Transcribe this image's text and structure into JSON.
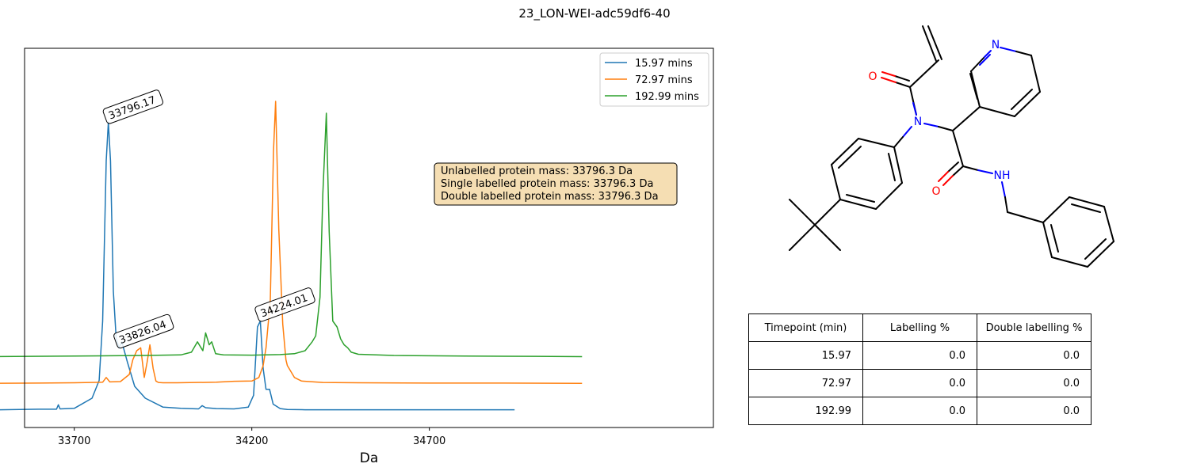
{
  "suptitle": "23_LON-WEI-adc59df6-40",
  "chart_data": {
    "type": "line",
    "xlabel": "Da",
    "ylabel": "",
    "xlim": [
      33560,
      35500
    ],
    "xticks": [
      33700,
      34200,
      34700
    ],
    "grid": false,
    "legend": {
      "location": "upper right"
    },
    "colors": [
      "#1f77b4",
      "#ff7f0e",
      "#2ca02c"
    ],
    "series": [
      {
        "name": "15.97 mins",
        "x": [
          33430,
          33600,
          33650,
          33655,
          33660,
          33700,
          33750,
          33770,
          33780,
          33790,
          33796,
          33802,
          33810,
          33818,
          33826,
          33834,
          33850,
          33870,
          33900,
          33950,
          34000,
          34050,
          34060,
          34070,
          34100,
          34150,
          34190,
          34205,
          34216,
          34224,
          34232,
          34240,
          34250,
          34260,
          34280,
          34300,
          34350,
          34500,
          34800,
          34940
        ],
        "y": [
          0,
          0.003,
          0.003,
          0.018,
          0.004,
          0.006,
          0.04,
          0.1,
          0.3,
          0.84,
          0.97,
          0.84,
          0.4,
          0.24,
          0.21,
          0.23,
          0.16,
          0.08,
          0.04,
          0.01,
          0.006,
          0.004,
          0.015,
          0.008,
          0.005,
          0.004,
          0.01,
          0.05,
          0.28,
          0.3,
          0.14,
          0.07,
          0.07,
          0.02,
          0.005,
          0.002,
          0.001,
          0.001,
          0.001,
          0.001
        ]
      },
      {
        "name": "72.97 mins",
        "x": [
          33380,
          33600,
          33700,
          33780,
          33790,
          33800,
          33830,
          33855,
          33865,
          33876,
          33887,
          33897,
          33905,
          33913,
          33922,
          33930,
          33937,
          33950,
          33990,
          34100,
          34150,
          34200,
          34220,
          34232,
          34240,
          34252,
          34261,
          34267,
          34276,
          34287,
          34296,
          34300,
          34320,
          34340,
          34400,
          34500,
          34700,
          34900,
          35130
        ],
        "y": [
          0,
          0.001,
          0.002,
          0.004,
          0.02,
          0.005,
          0.006,
          0.03,
          0.08,
          0.11,
          0.12,
          0.02,
          0.07,
          0.13,
          0.05,
          0.008,
          0.003,
          0.002,
          0.002,
          0.004,
          0.007,
          0.008,
          0.02,
          0.06,
          0.12,
          0.28,
          0.78,
          0.95,
          0.52,
          0.2,
          0.08,
          0.06,
          0.02,
          0.008,
          0.003,
          0.002,
          0.001,
          0.001,
          0
        ]
      },
      {
        "name": "192.99 mins",
        "x": [
          33430,
          33700,
          33800,
          33900,
          34000,
          34030,
          34047,
          34062,
          34070,
          34080,
          34087,
          34098,
          34120,
          34200,
          34280,
          34320,
          34350,
          34370,
          34380,
          34392,
          34400,
          34410,
          34418,
          34428,
          34440,
          34450,
          34460,
          34470,
          34480,
          34500,
          34600,
          34800,
          35000,
          35130
        ],
        "y": [
          0,
          0.002,
          0.003,
          0.004,
          0.006,
          0.015,
          0.05,
          0.02,
          0.08,
          0.04,
          0.05,
          0.01,
          0.006,
          0.005,
          0.007,
          0.01,
          0.02,
          0.05,
          0.07,
          0.2,
          0.55,
          0.82,
          0.42,
          0.12,
          0.1,
          0.06,
          0.04,
          0.03,
          0.015,
          0.008,
          0.004,
          0.002,
          0.001,
          0
        ]
      }
    ],
    "offset_between_series": 0.09,
    "annotations": [
      {
        "text": "33796.17",
        "x": 33796.17,
        "series": 0
      },
      {
        "text": "33826.04",
        "x": 33826.04,
        "series": 0
      },
      {
        "text": "34224.01",
        "x": 34224.01,
        "series": 0
      }
    ],
    "info_box": [
      "Unlabelled protein mass: 33796.3 Da",
      "Single labelled protein mass: 33796.3 Da",
      "Double labelled protein mass: 33796.3 Da"
    ]
  },
  "molecule": {
    "atom_labels": [
      {
        "text": "O",
        "color": "#ff0000"
      },
      {
        "text": "N",
        "color": "#0000ff"
      },
      {
        "text": "N",
        "color": "#0000ff"
      },
      {
        "text": "O",
        "color": "#ff0000"
      },
      {
        "text": "NH",
        "color": "#0000ff"
      }
    ]
  },
  "table": {
    "headers": [
      "Timepoint (min)",
      "Labelling %",
      "Double labelling %"
    ],
    "rows": [
      [
        "15.97",
        "0.0",
        "0.0"
      ],
      [
        "72.97",
        "0.0",
        "0.0"
      ],
      [
        "192.99",
        "0.0",
        "0.0"
      ]
    ]
  }
}
